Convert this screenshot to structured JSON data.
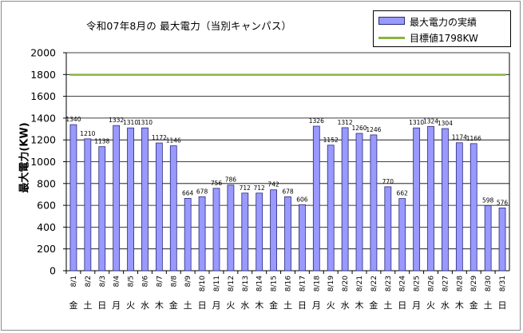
{
  "chart_data": {
    "type": "bar",
    "title": "令和07年8月の 最大電力（当別キャンパス）",
    "ylabel": "最大電力(KW)",
    "ylim": [
      0,
      2000
    ],
    "ytick_step": 200,
    "grid": true,
    "legend_position": "top-right",
    "categories": [
      "8/1",
      "8/2",
      "8/3",
      "8/4",
      "8/5",
      "8/6",
      "8/7",
      "8/8",
      "8/9",
      "8/10",
      "8/11",
      "8/12",
      "8/13",
      "8/14",
      "8/15",
      "8/16",
      "8/17",
      "8/18",
      "8/19",
      "8/20",
      "8/21",
      "8/22",
      "8/23",
      "8/24",
      "8/25",
      "8/26",
      "8/27",
      "8/28",
      "8/29",
      "8/30",
      "8/31"
    ],
    "weekdays": [
      "金",
      "土",
      "日",
      "月",
      "火",
      "水",
      "木",
      "金",
      "土",
      "日",
      "月",
      "火",
      "水",
      "木",
      "金",
      "土",
      "日",
      "月",
      "火",
      "水",
      "木",
      "金",
      "土",
      "日",
      "月",
      "火",
      "水",
      "木",
      "金",
      "土",
      "日"
    ],
    "series": [
      {
        "name": "最大電力の実績",
        "color": "#9999ff",
        "edge_color": "#2a2a7a",
        "values": [
          1340,
          1210,
          1138,
          1332,
          1310,
          1310,
          1172,
          1146,
          664,
          678,
          756,
          786,
          712,
          712,
          742,
          678,
          606,
          1326,
          1152,
          1312,
          1260,
          1246,
          770,
          662,
          1310,
          1324,
          1304,
          1174,
          1166,
          598,
          576
        ]
      },
      {
        "name": "目標値1798KW",
        "color": "#8ab341",
        "constant": 1798
      }
    ]
  }
}
